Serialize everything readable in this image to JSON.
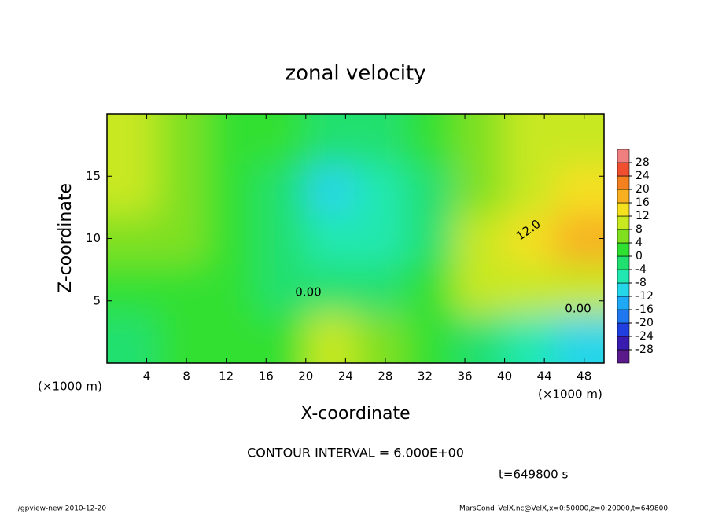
{
  "chart_data": {
    "type": "contour",
    "title": "zonal velocity",
    "xlabel": "X-coordinate",
    "ylabel": "Z-coordinate",
    "xunit": "(×1000 m)",
    "yunit": "(×1000 m)",
    "xlim": [
      0,
      50
    ],
    "ylim": [
      0,
      20
    ],
    "xticks": [
      4,
      8,
      12,
      16,
      20,
      24,
      28,
      32,
      36,
      40,
      44,
      48
    ],
    "yticks": [
      5,
      10,
      15
    ],
    "x": [
      2.5,
      7.5,
      12.5,
      17.5,
      22.5,
      27.5,
      32.5,
      37.5,
      42.5,
      47.5
    ],
    "y": [
      2,
      6,
      10,
      14,
      18
    ],
    "z": [
      [
        -4,
        0,
        2,
        2,
        8,
        6,
        2,
        -4,
        -8,
        -12
      ],
      [
        2,
        0,
        2,
        -2,
        -4,
        -2,
        0,
        8,
        10,
        8
      ],
      [
        6,
        4,
        0,
        -4,
        -8,
        -6,
        -2,
        8,
        14,
        16
      ],
      [
        8,
        4,
        2,
        -4,
        -10,
        -8,
        -2,
        4,
        10,
        12
      ],
      [
        8,
        6,
        2,
        0,
        -2,
        -2,
        0,
        4,
        8,
        10
      ]
    ],
    "colorbar_levels": [
      -28,
      -24,
      -20,
      -16,
      -12,
      -8,
      -4,
      0,
      4,
      8,
      12,
      16,
      20,
      24,
      28
    ],
    "colors": [
      "#5b1a8c",
      "#3a1bb0",
      "#1f3fe0",
      "#1f78f0",
      "#1ea8f5",
      "#25d5e8",
      "#20e8b0",
      "#22e070",
      "#30e030",
      "#80e020",
      "#c8e820",
      "#f5e020",
      "#f8b020",
      "#f58020",
      "#f05030",
      "#f08080"
    ],
    "contour_labels": [
      {
        "value": 0,
        "label": "0.00"
      },
      {
        "value": 0,
        "label": "0.00"
      },
      {
        "value": 12,
        "label": "12.0"
      }
    ],
    "contour_interval_text": "CONTOUR INTERVAL = 6.000E+00",
    "time_text": "t=649800 s",
    "footer_left": "./gpview-new  2010-12-20",
    "footer_right": "MarsCond_VelX.nc@VelX,x=0:50000,z=0:20000,t=649800"
  }
}
